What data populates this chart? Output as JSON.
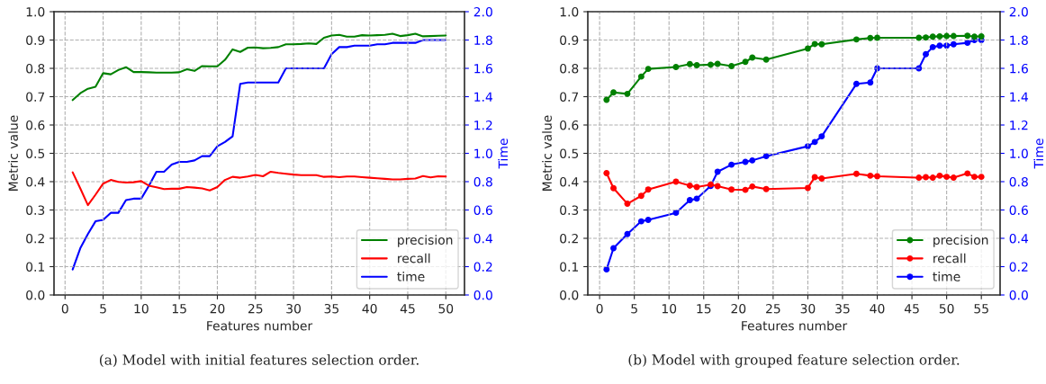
{
  "chart_data": [
    {
      "type": "line",
      "xlabel": "Features number",
      "ylabel": "Metric value",
      "y2label": "Time",
      "annotations": [
        "(a) Model with initial features selection order."
      ],
      "x": [
        1,
        2,
        3,
        4,
        5,
        6,
        7,
        8,
        9,
        10,
        11,
        12,
        13,
        14,
        15,
        16,
        17,
        18,
        19,
        20,
        21,
        22,
        23,
        24,
        25,
        26,
        27,
        28,
        29,
        30,
        31,
        32,
        33,
        34,
        35,
        36,
        37,
        38,
        39,
        40,
        41,
        42,
        43,
        44,
        45,
        46,
        47,
        48,
        49,
        50
      ],
      "series": [
        {
          "name": "precision",
          "color": "#008000",
          "values": [
            0.688,
            0.712,
            0.728,
            0.735,
            0.783,
            0.779,
            0.794,
            0.804,
            0.787,
            0.787,
            0.786,
            0.785,
            0.785,
            0.785,
            0.786,
            0.797,
            0.791,
            0.808,
            0.807,
            0.807,
            0.83,
            0.867,
            0.858,
            0.873,
            0.874,
            0.871,
            0.872,
            0.875,
            0.885,
            0.885,
            0.886,
            0.888,
            0.886,
            0.908,
            0.916,
            0.918,
            0.912,
            0.912,
            0.917,
            0.916,
            0.917,
            0.918,
            0.922,
            0.914,
            0.917,
            0.922,
            0.913,
            0.914,
            0.915,
            0.916
          ]
        },
        {
          "name": "recall",
          "color": "#ff0000",
          "values": [
            0.433,
            0.376,
            0.317,
            0.354,
            0.393,
            0.406,
            0.399,
            0.397,
            0.398,
            0.402,
            0.386,
            0.38,
            0.374,
            0.375,
            0.375,
            0.381,
            0.379,
            0.376,
            0.369,
            0.381,
            0.406,
            0.417,
            0.414,
            0.418,
            0.424,
            0.419,
            0.435,
            0.431,
            0.428,
            0.425,
            0.423,
            0.423,
            0.423,
            0.417,
            0.418,
            0.416,
            0.418,
            0.418,
            0.416,
            0.414,
            0.412,
            0.41,
            0.408,
            0.408,
            0.41,
            0.411,
            0.42,
            0.415,
            0.419,
            0.418
          ]
        },
        {
          "name": "time",
          "color": "#0000ff",
          "axis": "y2",
          "values": [
            0.18,
            0.33,
            0.43,
            0.52,
            0.53,
            0.58,
            0.58,
            0.67,
            0.68,
            0.68,
            0.77,
            0.87,
            0.87,
            0.92,
            0.94,
            0.94,
            0.95,
            0.98,
            0.98,
            1.05,
            1.08,
            1.12,
            1.49,
            1.5,
            1.5,
            1.5,
            1.5,
            1.5,
            1.6,
            1.6,
            1.6,
            1.6,
            1.6,
            1.6,
            1.7,
            1.75,
            1.75,
            1.76,
            1.76,
            1.76,
            1.77,
            1.77,
            1.78,
            1.78,
            1.78,
            1.78,
            1.8,
            1.8,
            1.8,
            1.8
          ]
        }
      ],
      "xlim": [
        -1.45,
        52.45
      ],
      "xticks": [
        0,
        5,
        10,
        15,
        20,
        25,
        30,
        35,
        40,
        45,
        50
      ],
      "ylim": [
        0,
        1
      ],
      "yticks": [
        {
          "value": 0,
          "label": "0.0"
        },
        {
          "value": 0.1,
          "label": "0.1"
        },
        {
          "value": 0.2,
          "label": "0.2"
        },
        {
          "value": 0.3,
          "label": "0.3"
        },
        {
          "value": 0.4,
          "label": "0.4"
        },
        {
          "value": 0.5,
          "label": "0.5"
        },
        {
          "value": 0.6,
          "label": "0.6"
        },
        {
          "value": 0.7,
          "label": "0.7"
        },
        {
          "value": 0.8,
          "label": "0.8"
        },
        {
          "value": 0.9,
          "label": "0.9"
        },
        {
          "value": 1,
          "label": "1.0"
        }
      ],
      "y2lim": [
        0,
        2
      ],
      "y2ticks": [
        {
          "value": 0,
          "label": "0.0"
        },
        {
          "value": 0.2,
          "label": "0.2"
        },
        {
          "value": 0.4,
          "label": "0.4"
        },
        {
          "value": 0.6,
          "label": "0.6"
        },
        {
          "value": 0.8,
          "label": "0.8"
        },
        {
          "value": 1,
          "label": "1.0"
        },
        {
          "value": 1.2,
          "label": "1.2"
        },
        {
          "value": 1.4,
          "label": "1.4"
        },
        {
          "value": 1.6,
          "label": "1.6"
        },
        {
          "value": 1.8,
          "label": "1.8"
        },
        {
          "value": 2,
          "label": "2.0"
        }
      ],
      "grid": true,
      "legend": "bottom right",
      "line_style": "solid"
    },
    {
      "type": "line",
      "xlabel": "Features number",
      "ylabel": "Metric value",
      "y2label": "Time",
      "annotations": [
        "(b) Model with grouped feature selection order."
      ],
      "x": [
        1,
        2,
        4,
        6,
        7,
        11,
        13,
        14,
        16,
        17,
        19,
        21,
        22,
        24,
        30,
        31,
        32,
        37,
        39,
        40,
        46,
        47,
        48,
        49,
        50,
        51,
        53,
        54,
        55
      ],
      "series": [
        {
          "name": "precision",
          "color": "#008000",
          "values": [
            0.689,
            0.715,
            0.71,
            0.771,
            0.798,
            0.805,
            0.815,
            0.811,
            0.813,
            0.816,
            0.808,
            0.823,
            0.838,
            0.831,
            0.87,
            0.886,
            0.885,
            0.902,
            0.907,
            0.908,
            0.908,
            0.909,
            0.912,
            0.913,
            0.914,
            0.914,
            0.915,
            0.912,
            0.913
          ]
        },
        {
          "name": "recall",
          "color": "#ff0000",
          "values": [
            0.43,
            0.377,
            0.322,
            0.35,
            0.372,
            0.4,
            0.386,
            0.381,
            0.39,
            0.384,
            0.372,
            0.371,
            0.383,
            0.374,
            0.378,
            0.416,
            0.411,
            0.428,
            0.421,
            0.419,
            0.414,
            0.416,
            0.414,
            0.421,
            0.417,
            0.414,
            0.429,
            0.417,
            0.417
          ]
        },
        {
          "name": "time",
          "color": "#0000ff",
          "axis": "y2",
          "values": [
            0.18,
            0.33,
            0.43,
            0.52,
            0.53,
            0.58,
            0.67,
            0.68,
            0.77,
            0.87,
            0.92,
            0.94,
            0.95,
            0.98,
            1.05,
            1.08,
            1.12,
            1.49,
            1.5,
            1.6,
            1.6,
            1.7,
            1.75,
            1.76,
            1.76,
            1.77,
            1.78,
            1.8,
            1.8
          ]
        }
      ],
      "xlim": [
        -1.7,
        57.7
      ],
      "xticks": [
        0,
        5,
        10,
        15,
        20,
        25,
        30,
        35,
        40,
        45,
        50,
        55
      ],
      "ylim": [
        0,
        1
      ],
      "yticks": [
        {
          "value": 0,
          "label": "0.0"
        },
        {
          "value": 0.1,
          "label": "0.1"
        },
        {
          "value": 0.2,
          "label": "0.2"
        },
        {
          "value": 0.3,
          "label": "0.3"
        },
        {
          "value": 0.4,
          "label": "0.4"
        },
        {
          "value": 0.5,
          "label": "0.5"
        },
        {
          "value": 0.6,
          "label": "0.6"
        },
        {
          "value": 0.7,
          "label": "0.7"
        },
        {
          "value": 0.8,
          "label": "0.8"
        },
        {
          "value": 0.9,
          "label": "0.9"
        },
        {
          "value": 1,
          "label": "1.0"
        }
      ],
      "y2lim": [
        0,
        2
      ],
      "y2ticks": [
        {
          "value": 0,
          "label": "0.0"
        },
        {
          "value": 0.2,
          "label": "0.2"
        },
        {
          "value": 0.4,
          "label": "0.4"
        },
        {
          "value": 0.6,
          "label": "0.6"
        },
        {
          "value": 0.8,
          "label": "0.8"
        },
        {
          "value": 1,
          "label": "1.0"
        },
        {
          "value": 1.2,
          "label": "1.2"
        },
        {
          "value": 1.4,
          "label": "1.4"
        },
        {
          "value": 1.6,
          "label": "1.6"
        },
        {
          "value": 1.8,
          "label": "1.8"
        },
        {
          "value": 2,
          "label": "2.0"
        }
      ],
      "grid": true,
      "legend": "bottom right",
      "marker": "circle",
      "line_style": "solid"
    }
  ]
}
